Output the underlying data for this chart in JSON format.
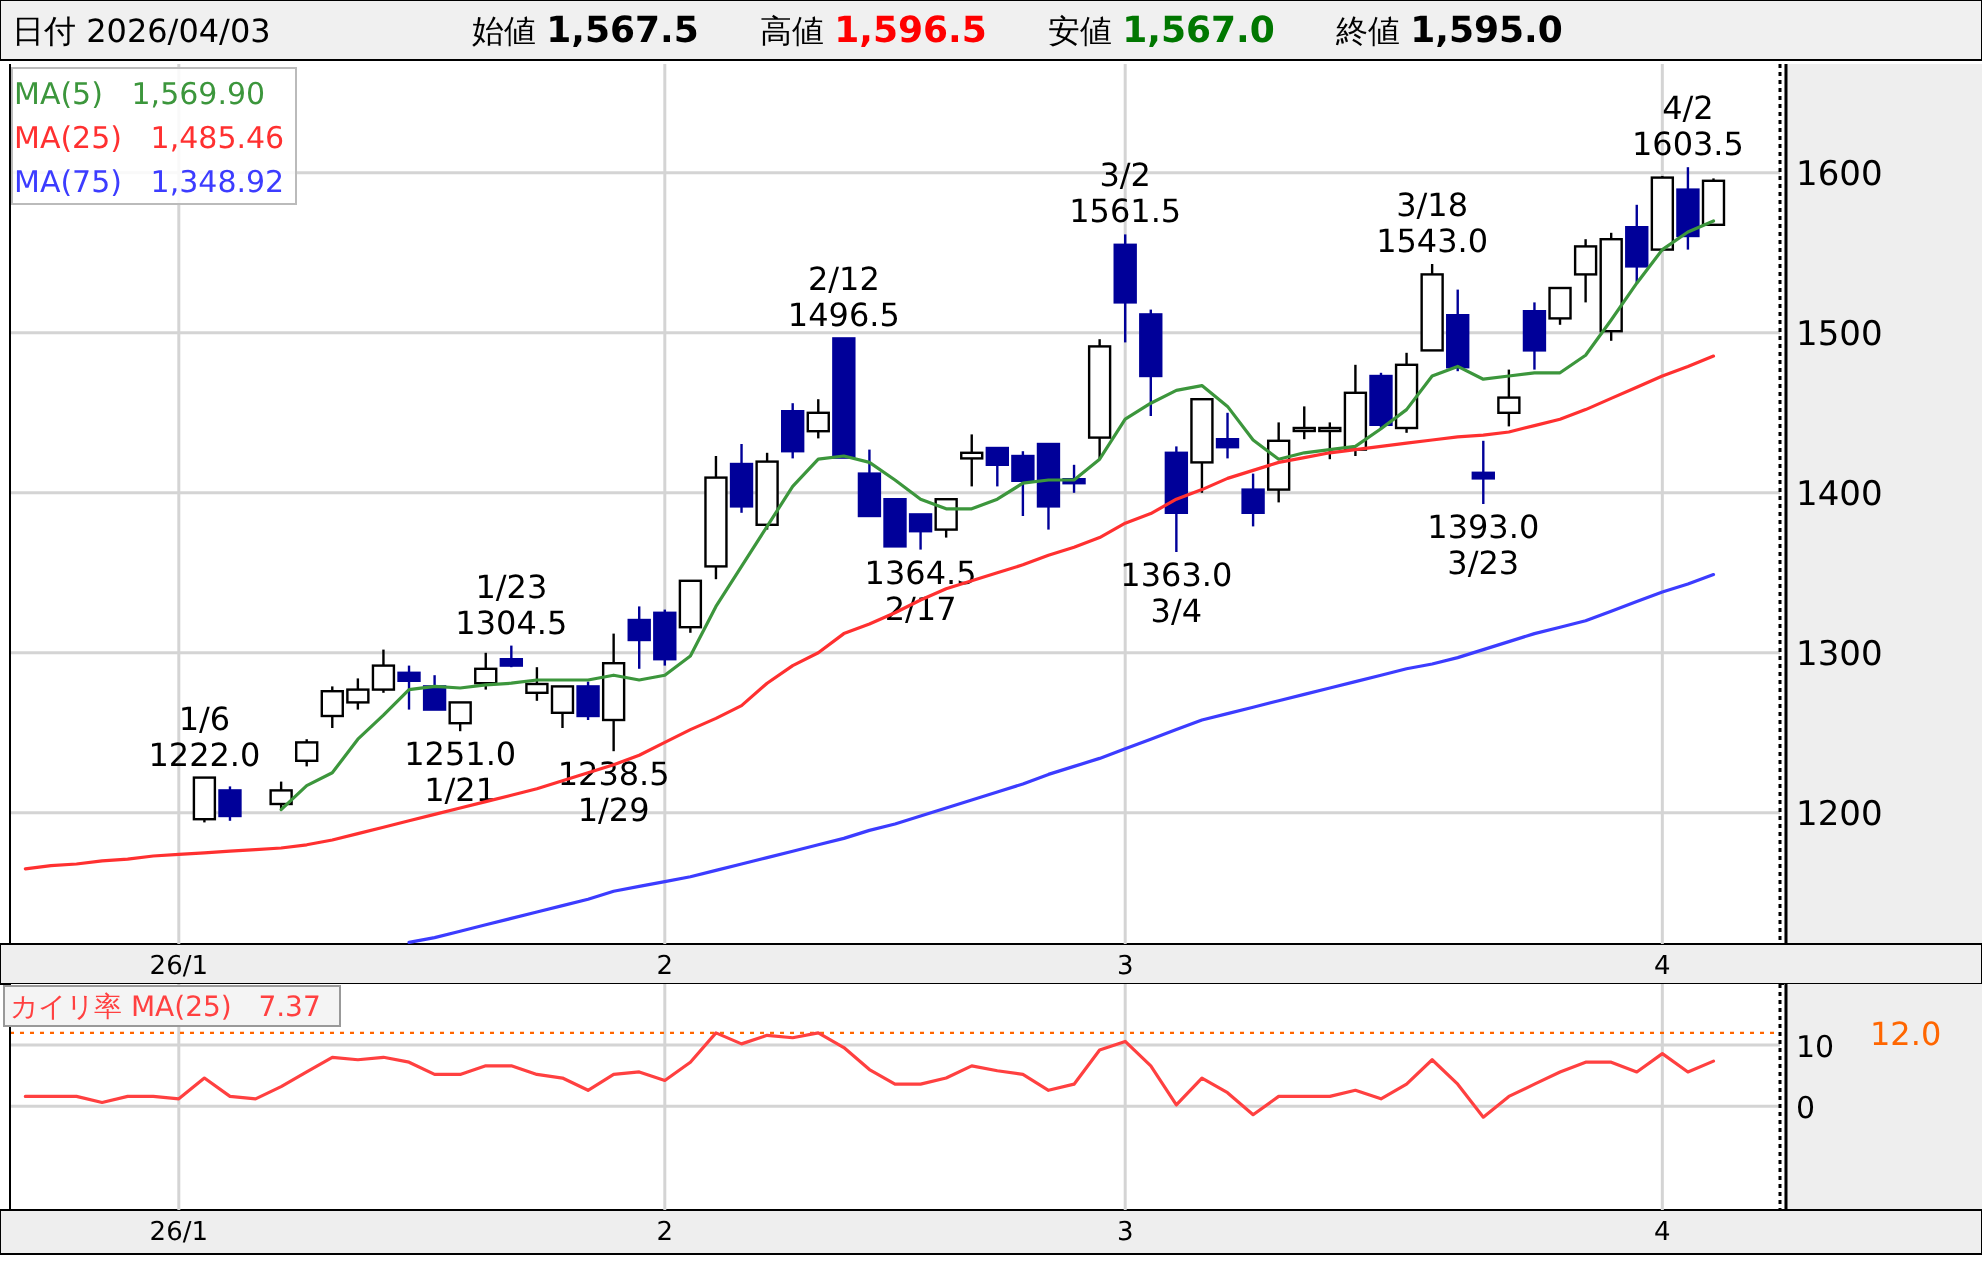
{
  "chart_data": [
    {
      "type": "candlestick",
      "title": "日付 2026/04/03",
      "annotations": [
        "始値 1,567.5",
        "高値 1,596.5",
        "安値 1,567.0",
        "終値 1,595.0",
        {
          "text": "1/6 1222.0",
          "y": 1222.0
        },
        {
          "text": "1/23 1304.5",
          "y": 1304.5
        },
        {
          "text": "1251.0 1/21",
          "y": 1251.0
        },
        {
          "text": "1238.5 1/29",
          "y": 1238.5
        },
        {
          "text": "2/12 1496.5",
          "y": 1496.5
        },
        {
          "text": "1364.5 2/17",
          "y": 1364.5
        },
        {
          "text": "3/2 1561.5",
          "y": 1561.5
        },
        {
          "text": "1363.0 3/4",
          "y": 1363.0
        },
        {
          "text": "3/18 1543.0",
          "y": 1543.0
        },
        {
          "text": "1393.0 3/23",
          "y": 1393.0
        },
        {
          "text": "4/2 1603.5",
          "y": 1603.5
        }
      ],
      "categories": [
        null,
        null,
        null,
        null,
        null,
        null,
        "26/1",
        null,
        null,
        null,
        null,
        null,
        null,
        null,
        null,
        null,
        null,
        null,
        null,
        null,
        null,
        null,
        null,
        null,
        null,
        "2",
        null,
        null,
        null,
        null,
        null,
        null,
        null,
        null,
        null,
        null,
        null,
        null,
        null,
        null,
        null,
        null,
        null,
        "3",
        null,
        null,
        null,
        null,
        null,
        null,
        null,
        null,
        null,
        null,
        null,
        null,
        null,
        null,
        null,
        null,
        null,
        null,
        null,
        null,
        "4",
        null,
        null
      ],
      "ohlc": [
        null,
        null,
        null,
        null,
        null,
        null,
        null,
        [
          1196,
          1222,
          1194,
          1222
        ],
        [
          1214,
          1216.5,
          1195,
          1198
        ],
        null,
        [
          1205.5,
          1219.5,
          1202,
          1214
        ],
        [
          1232.5,
          1246,
          1229,
          1244
        ],
        [
          1260.5,
          1279,
          1253,
          1276
        ],
        [
          1269,
          1284,
          1264.5,
          1277
        ],
        [
          1277,
          1302,
          1275,
          1292
        ],
        [
          1287.5,
          1292,
          1264.5,
          1282.5
        ],
        [
          1279,
          1286,
          1264.5,
          1264.5
        ],
        [
          1256,
          1269,
          1251,
          1269
        ],
        [
          1281,
          1300,
          1277,
          1290
        ],
        [
          1296,
          1304.5,
          1291,
          1292
        ],
        [
          1275,
          1291,
          1270,
          1280.5
        ],
        [
          1262.5,
          1279,
          1253,
          1279
        ],
        [
          1279,
          1282,
          1258,
          1260.5
        ],
        [
          1258,
          1312,
          1238.5,
          1293.5
        ],
        [
          1320.5,
          1329,
          1290,
          1308
        ],
        [
          1325,
          1327,
          1292,
          1296
        ],
        [
          1316,
          1345,
          1312.5,
          1345
        ],
        [
          1354,
          1423,
          1346,
          1409.5
        ],
        [
          1418,
          1430.5,
          1387.5,
          1391.5
        ],
        [
          1380,
          1425,
          1377,
          1419.5
        ],
        [
          1451,
          1456,
          1421.5,
          1426
        ],
        [
          1438.5,
          1458.5,
          1434,
          1450
        ],
        [
          1496.5,
          1496.5,
          1422,
          1422
        ],
        [
          1412,
          1427,
          1385.5,
          1385.5
        ],
        [
          1396,
          1396,
          1366.5,
          1366.5
        ],
        [
          1386.5,
          1386.5,
          1364.5,
          1376
        ],
        [
          1377,
          1396,
          1372,
          1396
        ],
        [
          1421.5,
          1436.5,
          1404,
          1425
        ],
        [
          1428,
          1428,
          1404,
          1417.5
        ],
        [
          1423,
          1426,
          1385.5,
          1407.5
        ],
        [
          1430.5,
          1430.5,
          1377,
          1391.5
        ],
        [
          1408.5,
          1417.5,
          1400,
          1406
        ],
        [
          1434.5,
          1496,
          1421,
          1491.5
        ],
        [
          1555,
          1561.5,
          1494,
          1519
        ],
        [
          1511.5,
          1514.5,
          1448,
          1473
        ],
        [
          1425,
          1429,
          1363,
          1387.5
        ],
        [
          1419,
          1458.5,
          1400,
          1458.5
        ],
        [
          1433.5,
          1450,
          1421.5,
          1428.5
        ],
        [
          1402,
          1412,
          1379,
          1387.5
        ],
        [
          1402,
          1444,
          1394,
          1432.5
        ],
        [
          1440.5,
          1454,
          1433.5,
          1440.5
        ],
        [
          1440.5,
          1444,
          1421,
          1440.5
        ],
        [
          1427,
          1480,
          1423,
          1462.5
        ],
        [
          1473,
          1475,
          1440,
          1442.5
        ],
        [
          1440.5,
          1487.5,
          1437.5,
          1480
        ],
        [
          1489,
          1543,
          1489,
          1536.5
        ],
        [
          1511,
          1527,
          1476,
          1478.5
        ],
        [
          1412.5,
          1432.5,
          1393,
          1409
        ],
        [
          1450,
          1477,
          1441.5,
          1459.5
        ],
        [
          1513.5,
          1519,
          1477,
          1489
        ],
        [
          1509,
          1528,
          1505,
          1528
        ],
        [
          1536.5,
          1558.5,
          1519,
          1554
        ],
        [
          1501,
          1562.5,
          1495,
          1558.5
        ],
        [
          1566,
          1580,
          1531,
          1541.5
        ],
        [
          1552,
          1598,
          1551,
          1597
        ],
        [
          1589.5,
          1603.5,
          1552,
          1560.5
        ],
        [
          1567.5,
          1596.5,
          1567,
          1595
        ]
      ],
      "colors": [
        null,
        null,
        null,
        null,
        null,
        null,
        null,
        "#ffffff",
        "#000099",
        null,
        "#ffffff",
        "#ffffff",
        "#ffffff",
        "#ffffff",
        "#ffffff",
        "#000099",
        "#000099",
        "#ffffff",
        "#ffffff",
        "#000099",
        "#ffffff",
        "#ffffff",
        "#000099",
        "#ffffff",
        "#000099",
        "#000099",
        "#ffffff",
        "#ffffff",
        "#000099",
        "#ffffff",
        "#000099",
        "#ffffff",
        "#000099",
        "#000099",
        "#000099",
        "#000099",
        "#ffffff",
        "#ffffff",
        "#000099",
        "#000099",
        "#000099",
        "#000099",
        "#ffffff",
        "#000099",
        "#000099",
        "#000099",
        "#ffffff",
        "#000099",
        "#000099",
        "#ffffff",
        "#ffffff",
        "#ffffff",
        "#ffffff",
        "#000099",
        "#ffffff",
        "#ffffff",
        "#000099",
        "#000099",
        "#ffffff",
        "#000099",
        "#ffffff",
        "#ffffff",
        "#ffffff",
        "#000099",
        "#ffffff",
        "#000099",
        "#ffffff"
      ],
      "series": [
        {
          "name": "MA(5)   1,569.90",
          "type": "line",
          "color": "#3c963c",
          "values": [
            null,
            null,
            null,
            null,
            null,
            null,
            null,
            null,
            null,
            null,
            1202,
            1217,
            1225,
            1246,
            1261,
            1277,
            1279,
            1278,
            1280,
            1281,
            1283,
            1283,
            1283,
            1286,
            1283,
            1286,
            1298,
            1329,
            1354,
            1379,
            1404,
            1421,
            1423,
            1419,
            1408,
            1396,
            1390,
            1390,
            1396,
            1406,
            1408,
            1408,
            1421,
            1446,
            1456,
            1464,
            1467,
            1454,
            1433,
            1421,
            1425,
            1427,
            1429,
            1440,
            1452,
            1473,
            1479,
            1471,
            1473,
            1475,
            1475,
            1486,
            1508,
            1531,
            1552,
            1563,
            1569.9
          ]
        },
        {
          "name": "MA(25)   1,485.46",
          "type": "line",
          "color": "#ff3030",
          "values": [
            1165,
            1167,
            1168,
            1170,
            1171,
            1173,
            1174,
            1175,
            1176,
            1177,
            1178,
            1180,
            1183,
            1187,
            1191,
            1195,
            1199,
            1203,
            1207,
            1211,
            1215,
            1220,
            1225,
            1230,
            1236,
            1244,
            1252,
            1259,
            1267,
            1281,
            1292,
            1300,
            1312,
            1318,
            1325,
            1333,
            1340,
            1345,
            1350,
            1355,
            1361,
            1366,
            1372,
            1381,
            1387,
            1396,
            1402,
            1409,
            1414,
            1419,
            1422,
            1425,
            1427,
            1429,
            1431,
            1433,
            1435,
            1436,
            1438,
            1442,
            1446,
            1452,
            1459,
            1466,
            1473,
            1479,
            1485.46
          ]
        },
        {
          "name": "MA(75)   1,348.92",
          "type": "line",
          "color": "#3c3cff",
          "values": [
            null,
            null,
            null,
            null,
            null,
            null,
            null,
            null,
            null,
            null,
            null,
            null,
            null,
            null,
            null,
            1119,
            1122,
            1126,
            1130,
            1134,
            1138,
            1142,
            1146,
            1151,
            1154,
            1157,
            1160,
            1164,
            1168,
            1172,
            1176,
            1180,
            1184,
            1189,
            1193,
            1198,
            1203,
            1208,
            1213,
            1218,
            1224,
            1229,
            1234,
            1240,
            1246,
            1252,
            1258,
            1262,
            1266,
            1270,
            1274,
            1278,
            1282,
            1286,
            1290,
            1293,
            1297,
            1302,
            1307,
            1312,
            1316,
            1320,
            1326,
            1332,
            1338,
            1343,
            1348.92
          ]
        }
      ],
      "ylim": [
        1118,
        1668
      ],
      "yticks": [
        1200,
        1300,
        1400,
        1500,
        1600
      ],
      "grid": true,
      "legend": "top left"
    },
    {
      "type": "line",
      "title": "カイリ率 MA(25)   7.37",
      "categories": [
        null,
        null,
        null,
        null,
        null,
        null,
        "26/1",
        null,
        null,
        null,
        null,
        null,
        null,
        null,
        null,
        null,
        null,
        null,
        null,
        null,
        null,
        null,
        null,
        null,
        null,
        "2",
        null,
        null,
        null,
        null,
        null,
        null,
        null,
        null,
        null,
        null,
        null,
        null,
        null,
        null,
        null,
        null,
        null,
        "3",
        null,
        null,
        null,
        null,
        null,
        null,
        null,
        null,
        null,
        null,
        null,
        null,
        null,
        null,
        null,
        null,
        null,
        null,
        null,
        null,
        "4",
        null,
        null
      ],
      "series": [
        {
          "color": "#ff4040",
          "values": [
            1.6,
            1.6,
            1.6,
            0.6,
            1.6,
            1.6,
            1.2,
            4.6,
            1.6,
            1.2,
            3.2,
            5.6,
            8,
            7.6,
            8,
            7.2,
            5.2,
            5.2,
            6.6,
            6.6,
            5.2,
            4.6,
            2.6,
            5.2,
            5.6,
            4.2,
            7.2,
            12,
            10.2,
            11.6,
            11.2,
            12,
            9.6,
            6,
            3.6,
            3.6,
            4.6,
            6.6,
            5.8,
            5.2,
            2.6,
            3.6,
            9.2,
            10.6,
            6.6,
            0.2,
            4.6,
            2.2,
            -1.4,
            1.6,
            1.6,
            1.6,
            2.6,
            1.2,
            3.6,
            7.6,
            3.6,
            -1.8,
            1.6,
            3.6,
            5.6,
            7.2,
            7.2,
            5.6,
            8.6,
            5.6,
            7.37
          ]
        }
      ],
      "ylim": [
        -17,
        20
      ],
      "yticks": [
        0,
        10
      ],
      "grid": true,
      "ref_lines": [
        {
          "axis": "y",
          "value": 12.0,
          "label": "12.0",
          "color": "#ff6600",
          "line_style": "dotted"
        }
      ]
    }
  ]
}
